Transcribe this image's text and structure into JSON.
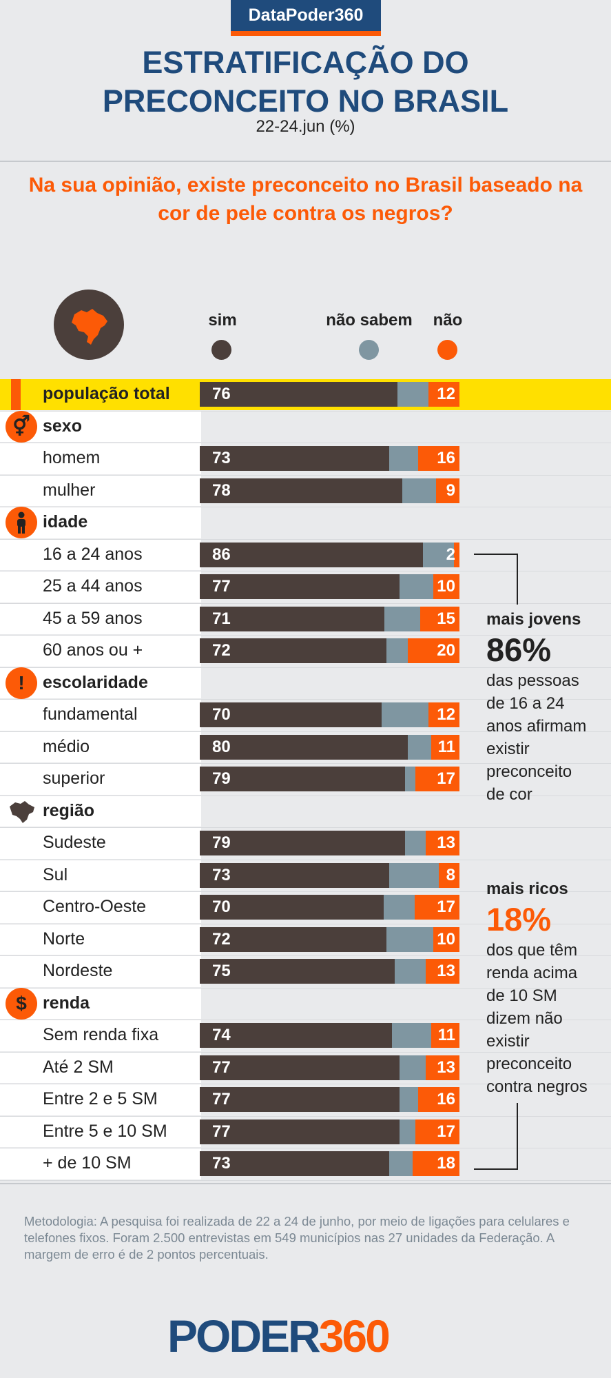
{
  "header": {
    "brand": "DataPoder360",
    "title": "ESTRATIFICAÇÃO DO\nPRECONCEITO NO BRASIL",
    "subtitle": "22-24.jun (%)",
    "question": "Na sua opinião, existe preconceito no Brasil baseado na cor de pele contra os negros?"
  },
  "legend": {
    "sim": "sim",
    "nao_sabem": "não sabem",
    "nao": "não"
  },
  "colors": {
    "sim": "#4b3f3b",
    "nao_sabem": "#7f96a1",
    "nao": "#fc5a07",
    "brand_blue": "#1f4b7c",
    "highlight": "#ffe000"
  },
  "chart_data": {
    "type": "bar",
    "stacked": true,
    "orientation": "horizontal",
    "unit": "%",
    "categories": [
      "população total",
      "homem",
      "mulher",
      "16 a 24 anos",
      "25 a 44 anos",
      "45 a 59 anos",
      "60 anos ou +",
      "fundamental",
      "médio",
      "superior",
      "Sudeste",
      "Sul",
      "Centro-Oeste",
      "Norte",
      "Nordeste",
      "Sem renda fixa",
      "Até 2 SM",
      "Entre 2 e 5 SM",
      "Entre 5 e 10 SM",
      "+ de 10 SM"
    ],
    "series": [
      {
        "name": "sim",
        "values": [
          76,
          73,
          78,
          86,
          77,
          71,
          72,
          70,
          80,
          79,
          79,
          73,
          70,
          72,
          75,
          74,
          77,
          77,
          77,
          73
        ]
      },
      {
        "name": "não sabem",
        "values": [
          12,
          11,
          13,
          12,
          13,
          14,
          8,
          18,
          9,
          4,
          8,
          19,
          12,
          18,
          12,
          15,
          10,
          7,
          6,
          9
        ]
      },
      {
        "name": "não",
        "values": [
          12,
          16,
          9,
          2,
          10,
          15,
          20,
          12,
          11,
          17,
          13,
          8,
          17,
          10,
          13,
          11,
          13,
          16,
          17,
          18
        ]
      }
    ]
  },
  "groups": [
    {
      "label": "sexo",
      "icon": "gender-icon",
      "glyph": "⚥"
    },
    {
      "label": "idade",
      "icon": "person-icon",
      "glyph": "👤"
    },
    {
      "label": "escolaridade",
      "icon": "exclamation-icon",
      "glyph": "!"
    },
    {
      "label": "região",
      "icon": "brazil-map-icon",
      "glyph": ""
    },
    {
      "label": "renda",
      "icon": "dollar-icon",
      "glyph": "$"
    }
  ],
  "callouts": {
    "jovens": {
      "title": "mais jovens",
      "number": "86%",
      "text": "das pessoas\nde 16 a 24\nanos afirmam\nexistir\npreconceito\nde cor"
    },
    "ricos": {
      "title": "mais ricos",
      "number": "18%",
      "text": "dos que têm\nrenda acima\nde 10 SM\ndizem não\nexistir\npreconceito\ncontra negros"
    }
  },
  "methodology": "Metodologia: A pesquisa foi realizada de 22 a 24 de junho, por meio de ligações  para celulares e telefones fixos. Foram 2.500 entrevistas em 549 municípios nas 27 unidades da Federação. A margem de erro é de 2 pontos percentuais.",
  "logo": {
    "part1": "PODER",
    "part2": "360"
  }
}
